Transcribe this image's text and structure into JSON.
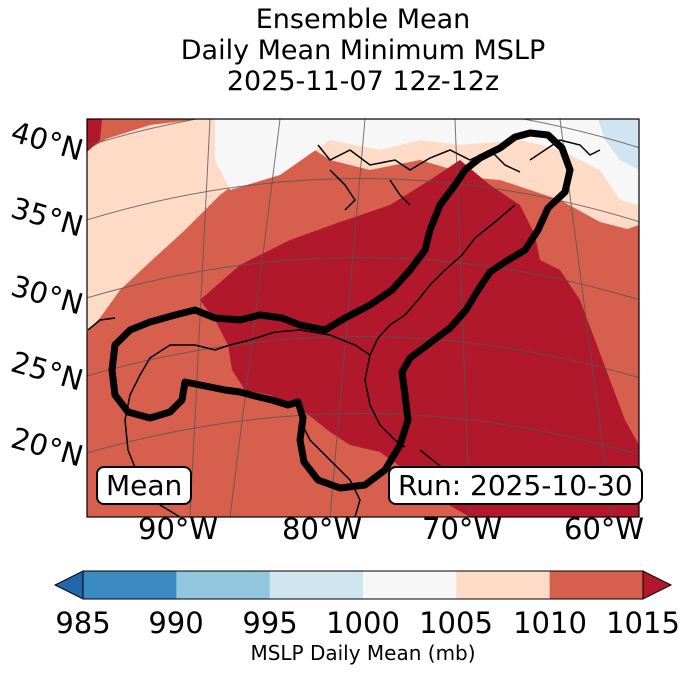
{
  "title": {
    "line1": "Ensemble Mean",
    "line2": "Daily Mean Minimum MSLP",
    "line3": "2025-11-07 12z-12z"
  },
  "map": {
    "lat_labels": [
      "40°N",
      "35°N",
      "30°N",
      "25°N",
      "20°N"
    ],
    "lon_labels": [
      "90°W",
      "80°W",
      "70°W",
      "60°W"
    ],
    "mean_label": "Mean",
    "run_label": "Run: 2025-10-30"
  },
  "colorbar": {
    "label": "MSLP Daily Mean (mb)",
    "ticks": [
      "985",
      "990",
      "995",
      "1000",
      "1005",
      "1010",
      "1015"
    ],
    "bins": [
      {
        "range": "985-990",
        "color": "#3b8bc2"
      },
      {
        "range": "990-995",
        "color": "#92c5de"
      },
      {
        "range": "995-1000",
        "color": "#d1e5f0"
      },
      {
        "range": "1000-1005",
        "color": "#f7f7f7"
      },
      {
        "range": "1005-1010",
        "color": "#fddbc7"
      },
      {
        "range": "1010-1015",
        "color": "#d6604d"
      }
    ],
    "under_color": "#2166ac",
    "over_color": "#b2182b"
  },
  "colors": {
    "above_1015": "#b2182b",
    "r1010_1015": "#d6604d",
    "r1005_1010": "#fddbc7",
    "r1000_1005": "#f7f7f7",
    "r995_1000": "#d1e5f0"
  }
}
